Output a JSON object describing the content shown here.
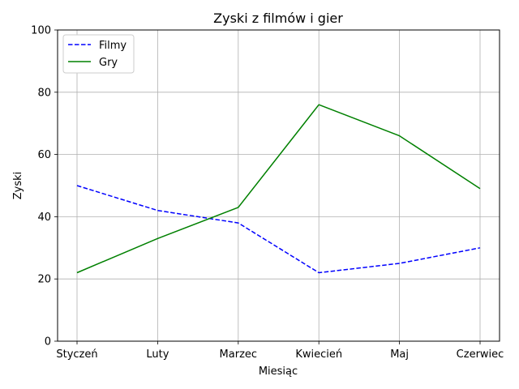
{
  "chart_data": {
    "type": "line",
    "title": "Zyski z filmów i gier",
    "xlabel": "Miesiąc",
    "ylabel": "Zyski",
    "categories": [
      "Styczeń",
      "Luty",
      "Marzec",
      "Kwiecień",
      "Maj",
      "Czerwiec"
    ],
    "ylim": [
      0,
      100
    ],
    "yticks": [
      0,
      20,
      40,
      60,
      80,
      100
    ],
    "grid": true,
    "legend_position": "top-left",
    "series": [
      {
        "name": "Filmy",
        "values": [
          50,
          42,
          38,
          22,
          25,
          30
        ],
        "color": "#0000ff",
        "style": "dashed"
      },
      {
        "name": "Gry",
        "values": [
          22,
          33,
          43,
          76,
          66,
          49
        ],
        "color": "#008000",
        "style": "solid"
      }
    ]
  }
}
